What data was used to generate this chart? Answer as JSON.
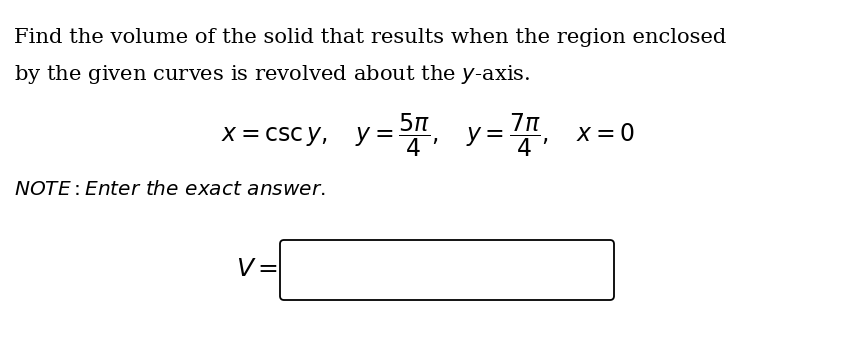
{
  "background_color": "#ffffff",
  "title_line1": "Find the volume of the solid that results when the region enclosed",
  "title_line2": "by the given curves is revolved about the $y$-axis.",
  "equation": "$x = \\mathrm{csc}\\, y, \\quad y = \\dfrac{5\\pi}{4}, \\quad y = \\dfrac{7\\pi}{4}, \\quad x = 0$",
  "note": "$\\mathit{NOTE: Enter\\ the\\ exact\\ answer.}$",
  "answer_label": "$V = $",
  "text_color": "#000000",
  "font_size_title": 15.2,
  "font_size_eq": 17,
  "font_size_note": 14.5,
  "font_size_answer": 18
}
